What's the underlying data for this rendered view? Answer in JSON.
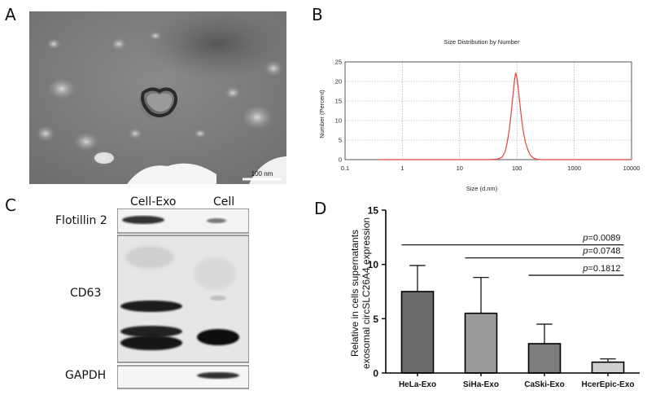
{
  "panels": {
    "a": {
      "letter": "A",
      "scale_bar_label": "100 nm"
    },
    "b": {
      "letter": "B",
      "chart_data": {
        "type": "line",
        "title": "Size Distribution by Number",
        "xlabel": "Size (d.nm)",
        "ylabel": "Number (Percent)",
        "x_scale": "log",
        "xlim": [
          0.1,
          10000
        ],
        "ylim": [
          0,
          25
        ],
        "x_ticks": [
          0.1,
          1,
          10,
          100,
          1000,
          10000
        ],
        "x_tick_labels": [
          "0.1",
          "1",
          "10",
          "100",
          "1000",
          "10000"
        ],
        "y_ticks": [
          0,
          5,
          10,
          15,
          20,
          25
        ],
        "y_tick_labels": [
          "0",
          "5",
          "10",
          "15",
          "20",
          "25"
        ],
        "grid": true,
        "series": [
          {
            "color": "#e8413c",
            "x": [
              0.4,
              10,
              30,
              45,
              55,
              62,
              68,
              74,
              80,
              86,
              91,
              95,
              100,
              105,
              112,
              120,
              130,
              140,
              155,
              170,
              190,
              220,
              260,
              320,
              10000
            ],
            "y": [
              0,
              0,
              0,
              0.1,
              0.6,
              2,
              4.5,
              8,
              12.5,
              17,
              20.5,
              22.2,
              21,
              18.5,
              14.5,
              10.5,
              7,
              4.5,
              2.5,
              1.2,
              0.5,
              0.1,
              0,
              0,
              0
            ]
          }
        ]
      }
    },
    "c": {
      "letter": "C",
      "lanes": [
        "Cell-Exo",
        "Cell"
      ],
      "bands": [
        "Flotillin 2",
        "CD63",
        "GAPDH"
      ]
    },
    "d": {
      "letter": "D",
      "chart_data": {
        "type": "bar",
        "categories": [
          "HeLa-Exo",
          "SiHa-Exo",
          "CaSki-Exo",
          "HcerEpic-Exo"
        ],
        "values": [
          7.5,
          5.5,
          2.7,
          1.0
        ],
        "errors": [
          2.4,
          3.3,
          1.8,
          0.3
        ],
        "colors": [
          "#6b6b6b",
          "#9a9a9a",
          "#7d7d7d",
          "#cfcfcf"
        ],
        "ylabel": "Relative in cells supernatants exosomal circSLC26A4 expression",
        "ylabel_lines": [
          "Relative in cells supernatants",
          "exosomal circSLC26A4 expression"
        ],
        "ylim": [
          0,
          15
        ],
        "y_ticks": [
          0,
          5,
          10,
          15
        ],
        "y_tick_labels": [
          "0",
          "5",
          "10",
          "15"
        ],
        "annotations": [
          {
            "from": 0,
            "to": 3,
            "y": 11.8,
            "p_symbol": "p",
            "text": "=0.0089"
          },
          {
            "from": 1,
            "to": 3,
            "y": 10.6,
            "p_symbol": "p",
            "text": "=0.0748"
          },
          {
            "from": 2,
            "to": 3,
            "y": 9.0,
            "p_symbol": "p",
            "text": "=0.1812"
          }
        ]
      }
    }
  }
}
